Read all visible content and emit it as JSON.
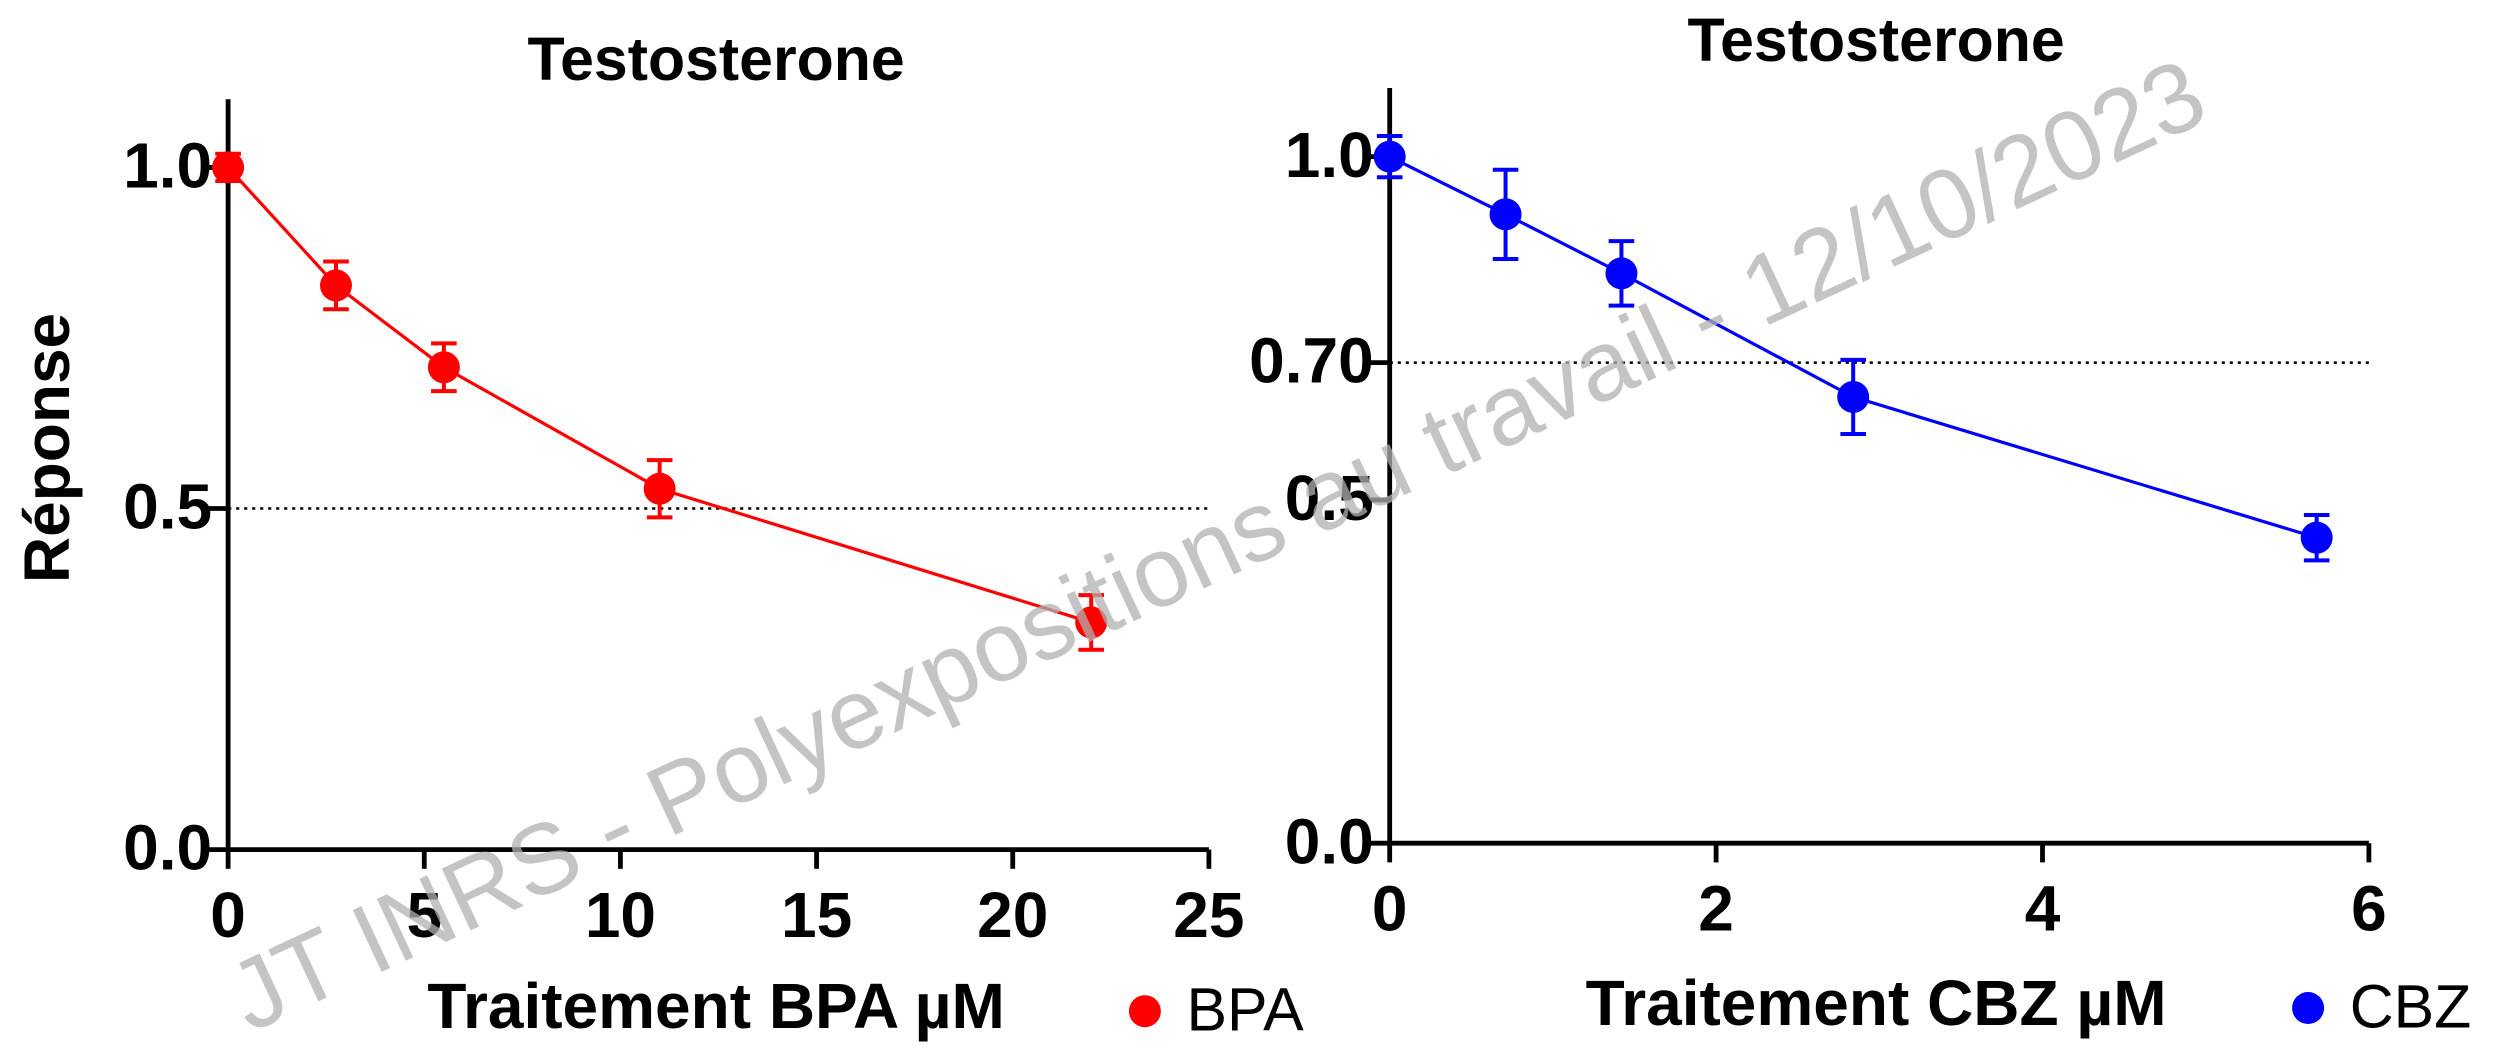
{
  "chart_data": [
    {
      "type": "line",
      "title": "Testosterone",
      "xlabel": "Traitement BPA µM",
      "ylabel": "Réponse",
      "x": [
        0,
        2.75,
        5.5,
        11,
        22
      ],
      "series": [
        {
          "name": "BPA",
          "color": "#ff0000",
          "values": [
            1.0,
            0.827,
            0.707,
            0.529,
            0.333
          ],
          "errors": [
            0.02,
            0.035,
            0.035,
            0.042,
            0.04
          ]
        }
      ],
      "xlim": [
        0,
        25
      ],
      "ylim": [
        0,
        1.1
      ],
      "xticks": [
        0,
        5,
        10,
        15,
        20,
        25
      ],
      "yticks": [
        {
          "value": 0,
          "label": "0.0"
        },
        {
          "value": 0.5,
          "label": "0.5"
        },
        {
          "value": 1,
          "label": "1.0"
        }
      ],
      "hline": 0.5,
      "legend": "bottom"
    },
    {
      "type": "line",
      "title": "Testosterone",
      "xlabel": "Traitement CBZ µM",
      "x": [
        0,
        0.71,
        1.42,
        2.84,
        5.68
      ],
      "series": [
        {
          "name": "CBZ",
          "color": "#0000ff",
          "values": [
            1.0,
            0.916,
            0.83,
            0.65,
            0.445
          ],
          "errors": [
            0.03,
            0.065,
            0.047,
            0.054,
            0.033
          ]
        }
      ],
      "xlim": [
        0,
        6
      ],
      "ylim": [
        0,
        1.1
      ],
      "xticks": [
        0,
        2,
        4,
        6
      ],
      "yticks": [
        {
          "value": 0,
          "label": "0.0"
        },
        {
          "value": 0.5,
          "label": "0.5"
        },
        {
          "value": 0.7,
          "label": "0.70"
        },
        {
          "value": 1,
          "label": "1.0"
        }
      ],
      "hline": 0.7,
      "legend": "bottom"
    }
  ],
  "watermark": "JT INRS - Polyexpositions au travail - 12/10/2023"
}
